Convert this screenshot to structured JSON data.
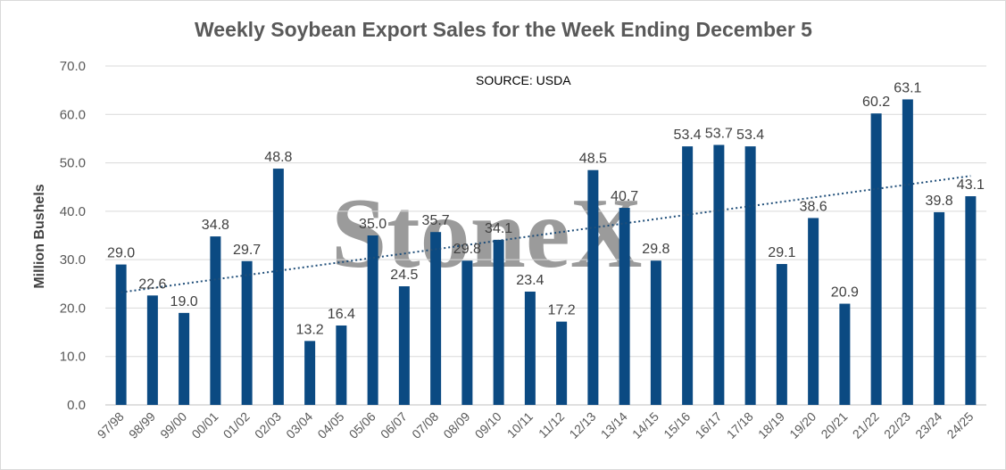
{
  "chart_data": {
    "type": "bar",
    "title": "Weekly Soybean Export Sales for the Week Ending December 5",
    "source_note": "SOURCE: USDA",
    "watermark": "StoneX",
    "ylabel": "Million Bushels",
    "xlabel": "",
    "ylim": [
      0,
      70
    ],
    "yticks": [
      "0.0",
      "10.0",
      "20.0",
      "30.0",
      "40.0",
      "50.0",
      "60.0",
      "70.0"
    ],
    "grid": true,
    "legend": "none",
    "trendline": "linear",
    "bar_color": "#0b4a82",
    "trend_color": "#1f4e79",
    "categories": [
      "97/98",
      "98/99",
      "99/00",
      "00/01",
      "01/02",
      "02/03",
      "03/04",
      "04/05",
      "05/06",
      "06/07",
      "07/08",
      "08/09",
      "09/10",
      "10/11",
      "11/12",
      "12/13",
      "13/14",
      "14/15",
      "15/16",
      "16/17",
      "17/18",
      "18/19",
      "19/20",
      "20/21",
      "21/22",
      "22/23",
      "23/24",
      "24/25"
    ],
    "values": [
      29.0,
      22.6,
      19.0,
      34.8,
      29.7,
      48.8,
      13.2,
      16.4,
      35.0,
      24.5,
      35.7,
      29.8,
      34.1,
      23.4,
      17.2,
      48.5,
      40.7,
      29.8,
      53.4,
      53.7,
      53.4,
      29.1,
      38.6,
      20.9,
      60.2,
      63.1,
      39.8,
      43.1
    ],
    "data_labels": [
      "29.0",
      "22.6",
      "19.0",
      "34.8",
      "29.7",
      "48.8",
      "13.2",
      "16.4",
      "35.0",
      "24.5",
      "35.7",
      "29.8",
      "34.1",
      "23.4",
      "17.2",
      "48.5",
      "40.7",
      "29.8",
      "53.4",
      "53.7",
      "53.4",
      "29.1",
      "38.6",
      "20.9",
      "60.2",
      "63.1",
      "39.8",
      "43.1"
    ]
  }
}
